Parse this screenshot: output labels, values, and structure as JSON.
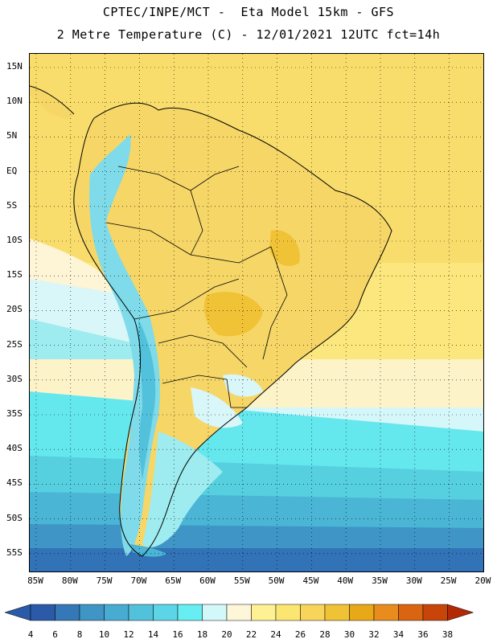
{
  "title": {
    "line1": "CPTEC/INPE/MCT -  Eta Model 15km - GFS",
    "line2": "2 Metre Temperature (C) - 12/01/2021 12UTC fct=14h"
  },
  "map": {
    "region": "South America",
    "lat_ticks": [
      "15N",
      "10N",
      "5N",
      "EQ",
      "5S",
      "10S",
      "15S",
      "20S",
      "25S",
      "30S",
      "35S",
      "40S",
      "45S",
      "50S",
      "55S"
    ],
    "lon_ticks": [
      "85W",
      "80W",
      "75W",
      "70W",
      "65W",
      "60W",
      "55W",
      "50W",
      "45W",
      "40W",
      "35W",
      "30W",
      "25W",
      "20W"
    ],
    "gridlines": "dotted"
  },
  "colorbar": {
    "labels": [
      "4",
      "6",
      "8",
      "10",
      "12",
      "14",
      "16",
      "18",
      "20",
      "22",
      "24",
      "26",
      "28",
      "30",
      "32",
      "34",
      "36",
      "38"
    ],
    "colors": [
      "#2a5aa8",
      "#3578b8",
      "#3f95c6",
      "#48acd2",
      "#52c2dc",
      "#5cd6e6",
      "#66eef2",
      "#d2f8fa",
      "#fdf6d9",
      "#fdf194",
      "#fce672",
      "#f8d55a",
      "#f0c236",
      "#e9a818",
      "#e88d1d",
      "#d96513",
      "#c74508",
      "#b22a05"
    ]
  }
}
